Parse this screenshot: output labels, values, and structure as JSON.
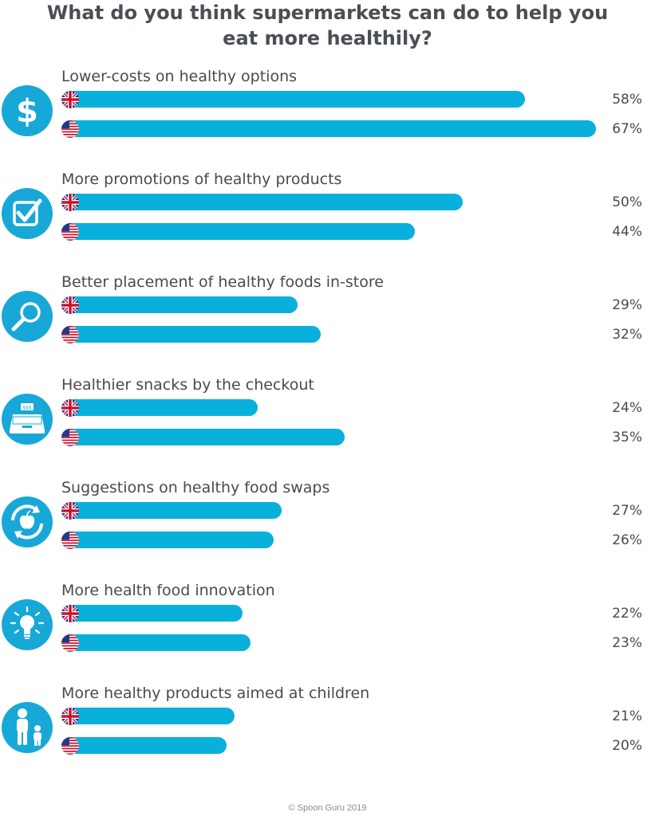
{
  "title_lines": [
    "What do you think supermarkets can do to help you",
    "eat more healthily?"
  ],
  "credit": "© Spoon Guru 2019",
  "colors": {
    "bar": "#0ab0dc",
    "icon": "#18a8d8",
    "text": "#4a4a4a"
  },
  "chart_data": {
    "type": "bar",
    "orientation": "horizontal",
    "title": "What do you think supermarkets can do to help you eat more healthily?",
    "unit": "%",
    "categories": [
      "Lower-costs on healthy options",
      "More promotions of healthy products",
      "Better placement of healthy foods in-store",
      "Healthier snacks by the checkout",
      "Suggestions on healthy food swaps",
      "More health food innovation",
      "More healthy products aimed at children"
    ],
    "category_icons": [
      "dollar-icon",
      "checkbox-icon",
      "magnifier-icon",
      "cash-register-icon",
      "swap-apple-icon",
      "lightbulb-icon",
      "parent-child-icon"
    ],
    "series": [
      {
        "flag": "uk-flag-icon",
        "values": [
          58,
          50,
          29,
          24,
          27,
          22,
          21
        ],
        "labels": [
          "58%",
          "50%",
          "29%",
          "24%",
          "27%",
          "22%",
          "21%"
        ]
      },
      {
        "flag": "us-flag-icon",
        "values": [
          67,
          44,
          32,
          35,
          26,
          23,
          20
        ],
        "labels": [
          "67%",
          "44%",
          "32%",
          "35%",
          "26%",
          "23%",
          "20%"
        ]
      }
    ],
    "xlim": [
      0,
      67
    ],
    "grid": false,
    "legend": "none"
  }
}
